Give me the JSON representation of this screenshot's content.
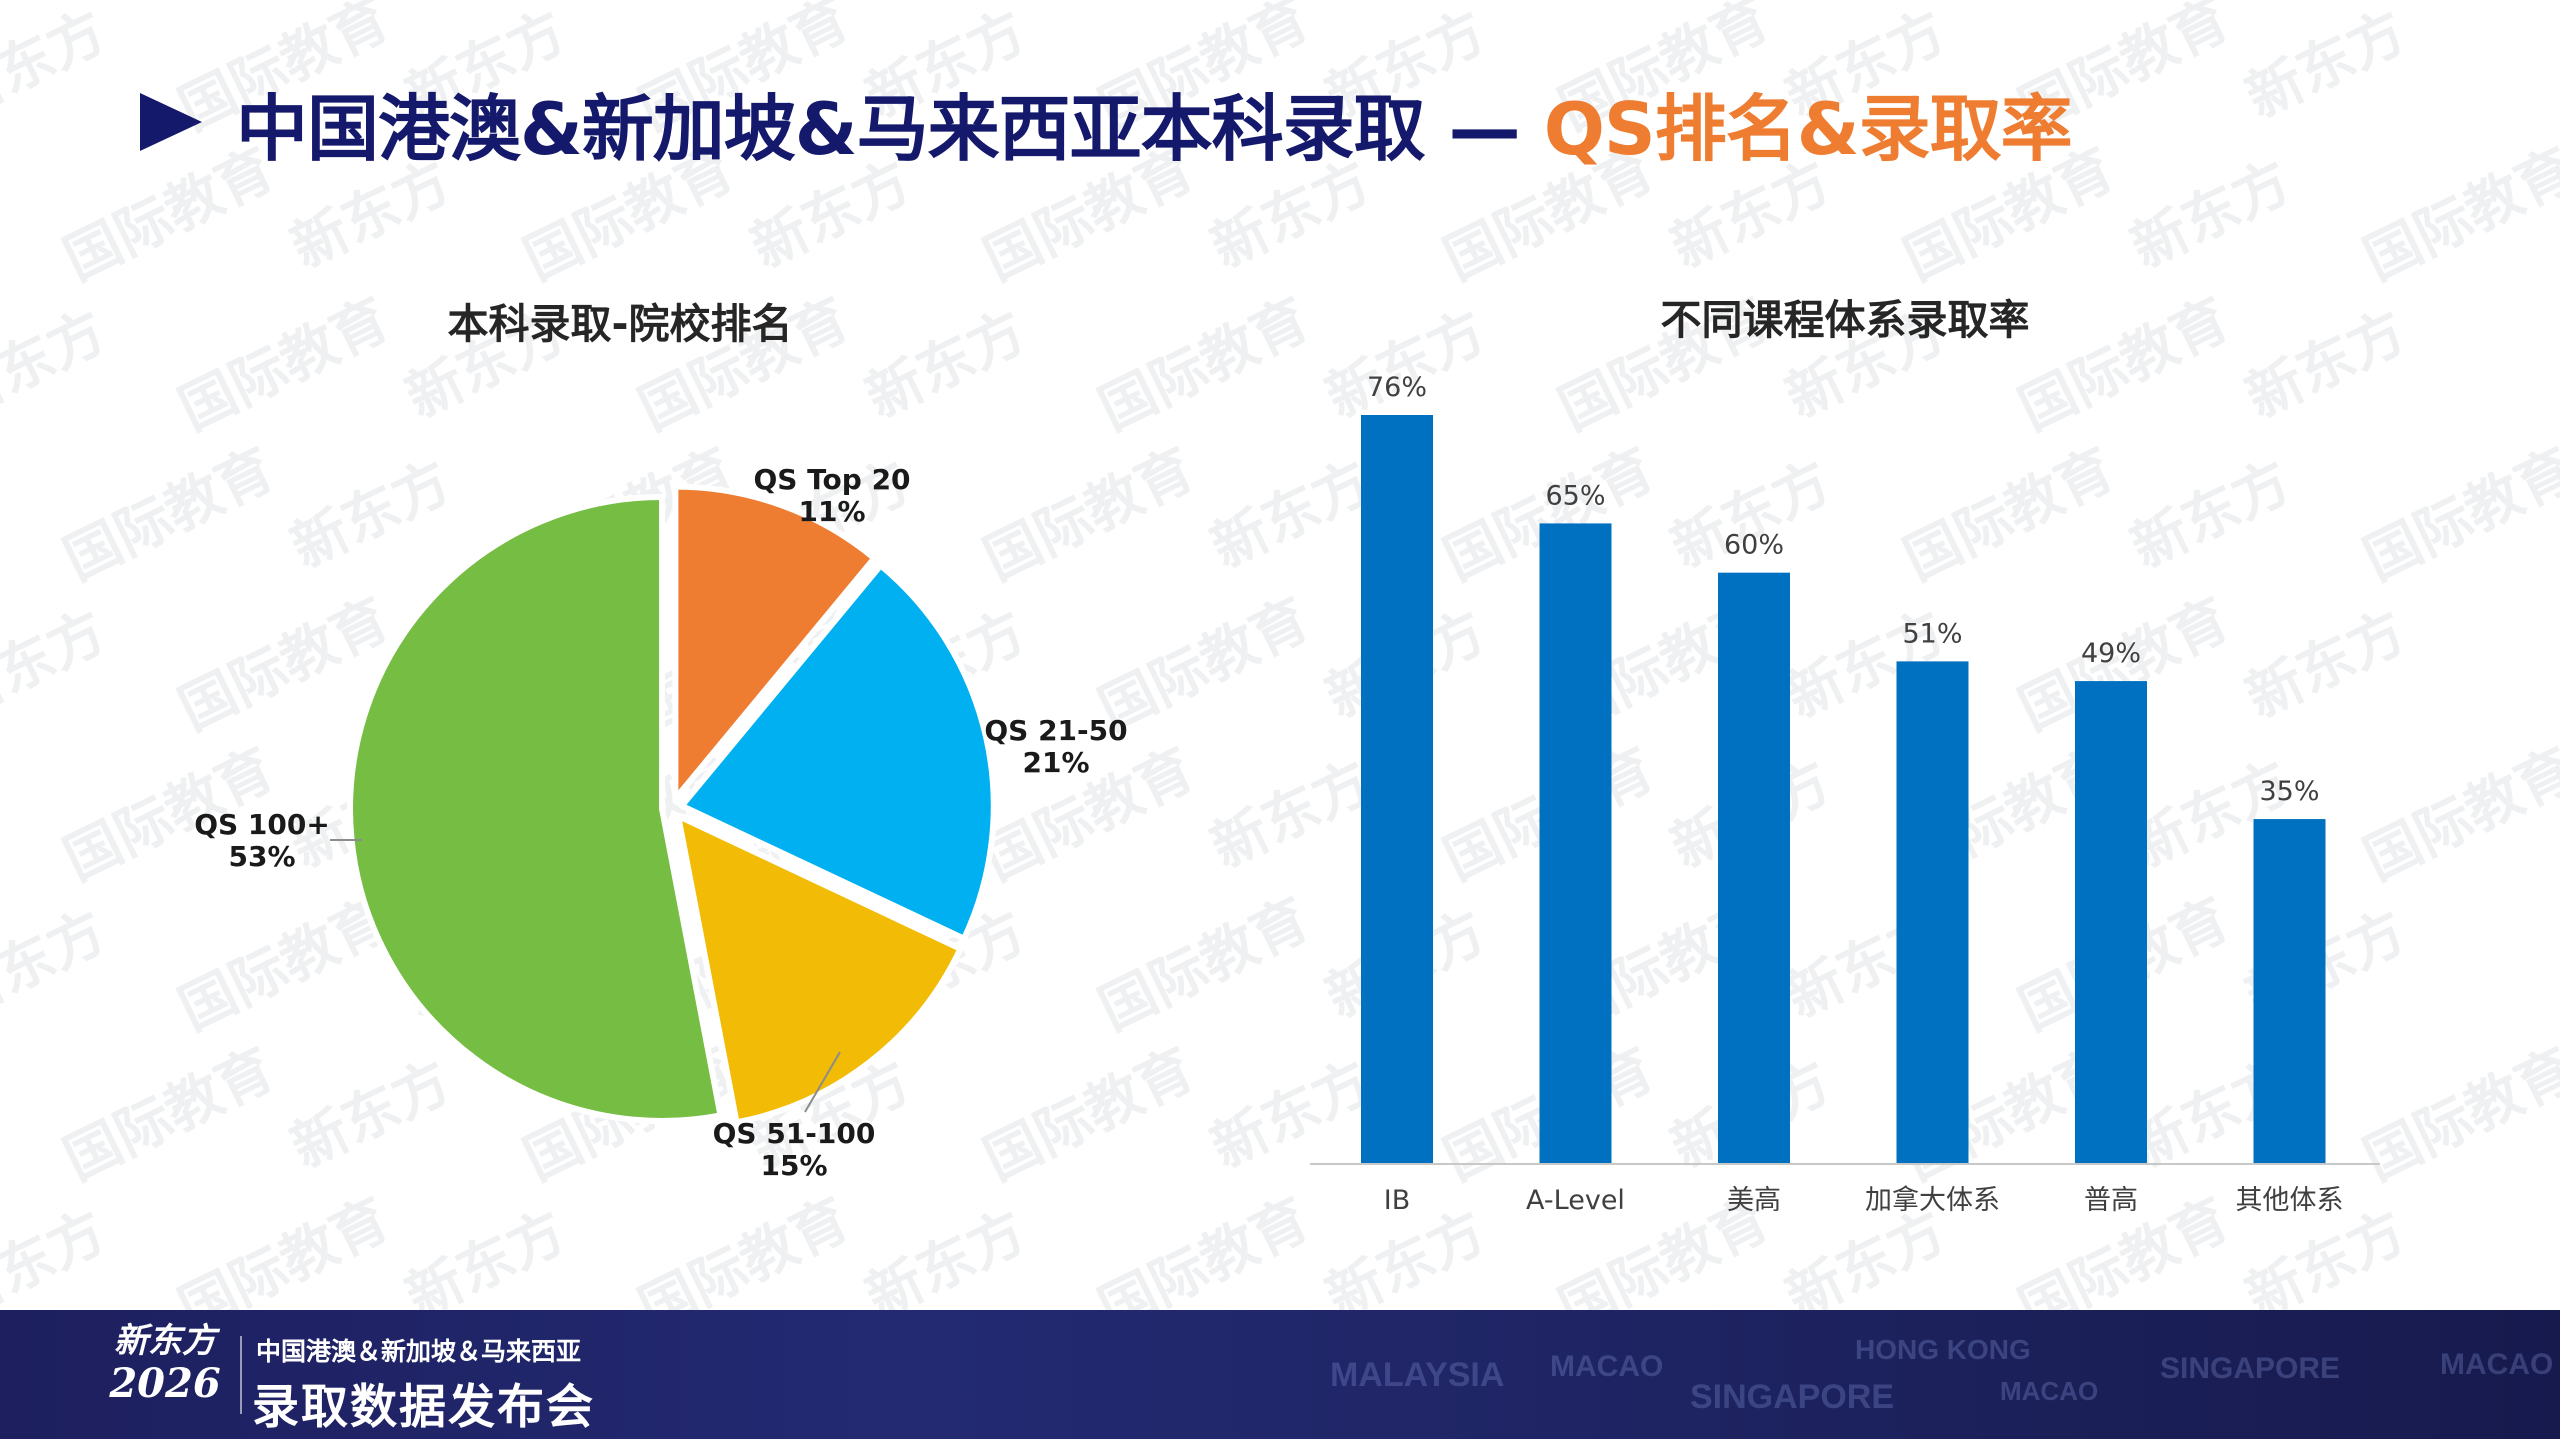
{
  "header": {
    "title_main": "中国港澳&新加坡&马来西亚本科录取 — ",
    "title_accent": "QS排名&录取率"
  },
  "watermark": {
    "brand": "新东方",
    "tagline": "国际教育"
  },
  "footer": {
    "logo_top": "新东方",
    "logo_year": "2026",
    "subtitle": "中国港澳＆新加坡＆马来西亚",
    "title": "录取数据发布会",
    "cities": [
      "MALAYSIA",
      "MACAO",
      "HONG KONG",
      "SINGAPORE",
      "MACAO",
      "SINGAPORE",
      "MACAO"
    ]
  },
  "colors": {
    "navy": "#14196b",
    "orange": "#ee7d31",
    "bar": "#0070c0",
    "slice_top20": "#ee7d31",
    "slice_21_50": "#00b0f0",
    "slice_51_100": "#f2bb05",
    "slice_100plus": "#76bd44"
  },
  "chart_data": [
    {
      "type": "pie",
      "title": "本科录取-院校排名",
      "slices": [
        {
          "label": "QS Top 20",
          "value": 11,
          "value_label": "11%",
          "color": "#ee7d31"
        },
        {
          "label": "QS 21-50",
          "value": 21,
          "value_label": "21%",
          "color": "#00b0f0"
        },
        {
          "label": "QS 51-100",
          "value": 15,
          "value_label": "15%",
          "color": "#f2bb05"
        },
        {
          "label": "QS 100+",
          "value": 53,
          "value_label": "53%",
          "color": "#76bd44"
        }
      ],
      "exploded": true,
      "legend": "none"
    },
    {
      "type": "bar",
      "title": "不同课程体系录取率",
      "categories": [
        "IB",
        "A-Level",
        "美高",
        "加拿大体系",
        "普高",
        "其他体系"
      ],
      "values": [
        76,
        65,
        60,
        51,
        49,
        35
      ],
      "value_labels": [
        "76%",
        "65%",
        "60%",
        "51%",
        "49%",
        "35%"
      ],
      "ylim": [
        0,
        80
      ],
      "grid": false,
      "legend": "none"
    }
  ]
}
